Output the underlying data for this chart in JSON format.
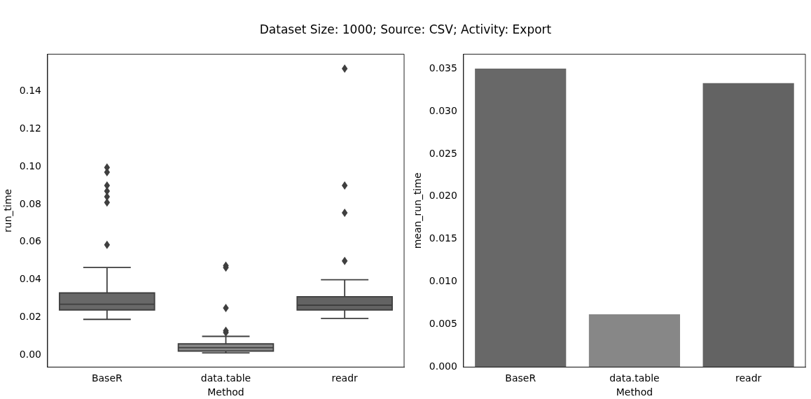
{
  "chart_data": [
    {
      "type": "box",
      "title": "Dataset Size: 1000; Source: CSV; Activity: Export",
      "xlabel": "Method",
      "ylabel": "run_time",
      "categories": [
        "BaseR",
        "data.table",
        "readr"
      ],
      "colors": [
        "#686868",
        "#8a8a8a",
        "#636363"
      ],
      "boxes": [
        {
          "low": 0.019,
          "q1": 0.024,
          "median": 0.027,
          "q3": 0.033,
          "high": 0.0465,
          "outliers": [
            0.0995,
            0.097,
            0.09,
            0.087,
            0.084,
            0.081,
            0.0585
          ]
        },
        {
          "low": 0.0012,
          "q1": 0.0022,
          "median": 0.004,
          "q3": 0.006,
          "high": 0.01,
          "outliers": [
            0.0475,
            0.0465,
            0.025,
            0.013,
            0.012
          ]
        },
        {
          "low": 0.0195,
          "q1": 0.024,
          "median": 0.0265,
          "q3": 0.031,
          "high": 0.04,
          "outliers": [
            0.152,
            0.09,
            0.0755,
            0.05
          ]
        }
      ],
      "ylim": [
        -0.0063,
        0.1596
      ],
      "yticks": [
        {
          "value": 0,
          "label": "0.00"
        },
        0.02,
        0.04,
        0.06,
        0.08,
        {
          "value": 0.1,
          "label": "0.10"
        },
        0.12,
        0.14
      ],
      "marker": "diamond",
      "grid": false,
      "legend": false
    },
    {
      "type": "bar",
      "xlabel": "Method",
      "ylabel": "mean_run_time",
      "categories": [
        "BaseR",
        "data.table",
        "readr"
      ],
      "values": [
        0.035,
        0.0062,
        0.0333
      ],
      "colors": [
        "#686868",
        "#878787",
        "#636363"
      ],
      "ylim": [
        0,
        0.0367
      ],
      "yticks": [
        {
          "value": 0,
          "label": "0.000"
        },
        {
          "value": 0.005,
          "label": "0.005"
        },
        {
          "value": 0.01,
          "label": "0.010"
        },
        {
          "value": 0.015,
          "label": "0.015"
        },
        {
          "value": 0.02,
          "label": "0.020"
        },
        {
          "value": 0.025,
          "label": "0.025"
        },
        {
          "value": 0.03,
          "label": "0.030"
        },
        {
          "value": 0.035,
          "label": "0.035"
        }
      ],
      "grid": false,
      "legend": false
    }
  ]
}
